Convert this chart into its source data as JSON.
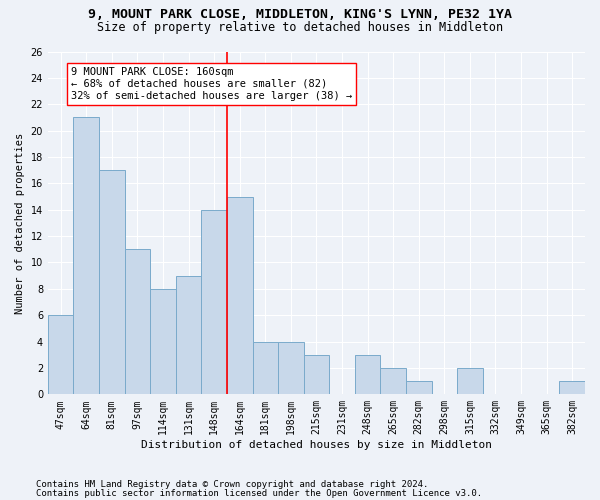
{
  "title": "9, MOUNT PARK CLOSE, MIDDLETON, KING'S LYNN, PE32 1YA",
  "subtitle": "Size of property relative to detached houses in Middleton",
  "xlabel": "Distribution of detached houses by size in Middleton",
  "ylabel": "Number of detached properties",
  "categories": [
    "47sqm",
    "64sqm",
    "81sqm",
    "97sqm",
    "114sqm",
    "131sqm",
    "148sqm",
    "164sqm",
    "181sqm",
    "198sqm",
    "215sqm",
    "231sqm",
    "248sqm",
    "265sqm",
    "282sqm",
    "298sqm",
    "315sqm",
    "332sqm",
    "349sqm",
    "365sqm",
    "382sqm"
  ],
  "values": [
    6,
    21,
    17,
    11,
    8,
    9,
    14,
    15,
    4,
    4,
    3,
    0,
    3,
    2,
    1,
    0,
    2,
    0,
    0,
    0,
    1
  ],
  "bar_color": "#c8d8ea",
  "bar_edge_color": "#7aaacb",
  "vline_x_idx": 7,
  "vline_color": "red",
  "annotation_text": "9 MOUNT PARK CLOSE: 160sqm\n← 68% of detached houses are smaller (82)\n32% of semi-detached houses are larger (38) →",
  "annotation_box_color": "white",
  "annotation_box_edge_color": "red",
  "ylim": [
    0,
    26
  ],
  "yticks": [
    0,
    2,
    4,
    6,
    8,
    10,
    12,
    14,
    16,
    18,
    20,
    22,
    24,
    26
  ],
  "background_color": "#eef2f8",
  "grid_color": "white",
  "footer1": "Contains HM Land Registry data © Crown copyright and database right 2024.",
  "footer2": "Contains public sector information licensed under the Open Government Licence v3.0.",
  "title_fontsize": 9.5,
  "subtitle_fontsize": 8.5,
  "xlabel_fontsize": 8,
  "ylabel_fontsize": 7.5,
  "tick_fontsize": 7,
  "annotation_fontsize": 7.5,
  "footer_fontsize": 6.5
}
